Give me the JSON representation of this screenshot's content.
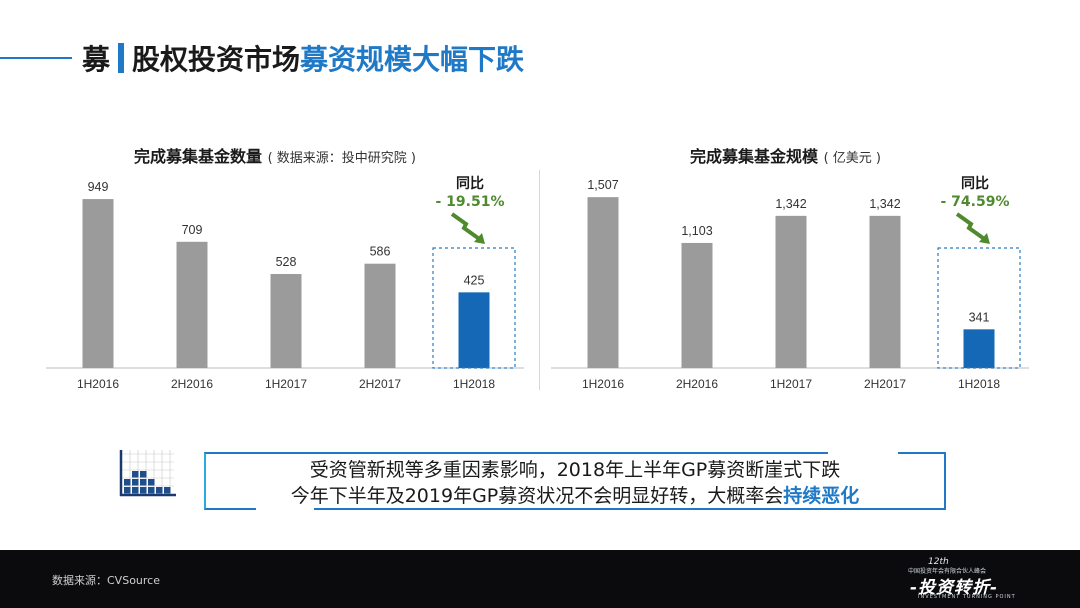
{
  "title": {
    "prefix": "募",
    "main": "股权投资市场",
    "accent": "募资规模大幅下跌"
  },
  "chart_data": [
    {
      "type": "bar",
      "title": "完成募集基金数量",
      "subtitle": "( 数据来源：投中研究院 )",
      "categories": [
        "1H2016",
        "2H2016",
        "1H2017",
        "2H2017",
        "1H2018"
      ],
      "values": [
        949,
        709,
        528,
        586,
        425
      ],
      "labels": [
        "949",
        "709",
        "528",
        "586",
        "425"
      ],
      "highlight_index": 4,
      "yoy_label": "同比",
      "yoy_value": "- 19.51%",
      "ylim": [
        0,
        1000
      ],
      "grid": false,
      "colors": {
        "bar": "#9b9b9b",
        "highlight": "#1568b5",
        "yoy": "#4f8a2f"
      }
    },
    {
      "type": "bar",
      "title": "完成募集基金规模",
      "subtitle": "( 亿美元 )",
      "categories": [
        "1H2016",
        "2H2016",
        "1H2017",
        "2H2017",
        "1H2018"
      ],
      "values": [
        1507,
        1103,
        1342,
        1342,
        341
      ],
      "labels": [
        "1,507",
        "1,103",
        "1,342",
        "1,342",
        "341"
      ],
      "highlight_index": 4,
      "yoy_label": "同比",
      "yoy_value": "- 74.59%",
      "ylim": [
        0,
        1570
      ],
      "grid": false,
      "colors": {
        "bar": "#9b9b9b",
        "highlight": "#1568b5",
        "yoy": "#4f8a2f"
      }
    }
  ],
  "summary": {
    "line1": "受资管新规等多重因素影响，2018年上半年GP募资断崖式下跌",
    "line2_plain": "今年下半年及2019年GP募资状况不会明显好转，大概率会",
    "line2_highlight": "持续恶化"
  },
  "footer": {
    "source": "数据来源：CVSource",
    "logo_number": "12th",
    "logo_small": "中国投资年会有限合伙人峰会",
    "logo_main": "-投资转折-",
    "logo_en": "INVESTMENT TURNING POINT"
  },
  "icons": [
    "bar-grid-icon",
    "down-trend-arrow-icon"
  ]
}
